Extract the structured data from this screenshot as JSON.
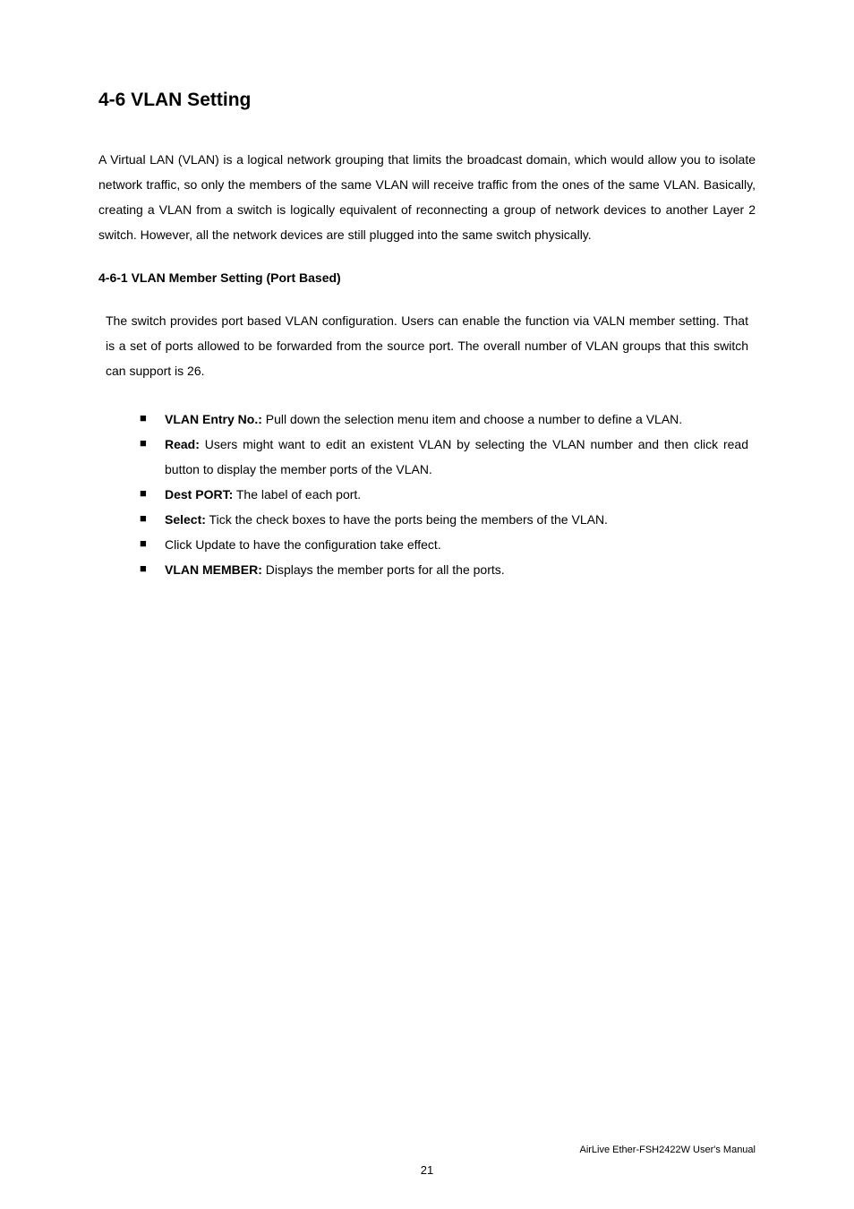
{
  "page": {
    "heading1": "4-6 VLAN Setting",
    "intro_para": "A Virtual LAN (VLAN) is a logical network grouping that limits the broadcast domain, which would allow you to isolate network traffic, so only the members of the same VLAN will receive traffic from the ones of the same VLAN. Basically, creating a VLAN from a switch is logically equivalent of reconnecting a group of network devices to another Layer 2 switch. However, all the network devices are still plugged into the same switch physically.",
    "heading2": "4-6-1 VLAN Member Setting (Port Based)",
    "desc_para": "The switch provides port based VLAN configuration. Users can enable the function via VALN member setting. That is a set of ports allowed to be forwarded from the source port. The overall number of VLAN groups that this switch can support is 26.",
    "bullets": [
      {
        "bold": "VLAN Entry No.:",
        "rest": " Pull down the selection menu item and choose a number to define a VLAN."
      },
      {
        "bold": "Read:",
        "rest": " Users might want to edit an existent VLAN by selecting the VLAN number and then click read button to display the member ports of the VLAN."
      },
      {
        "bold": "Dest PORT:",
        "rest": " The label of each port."
      },
      {
        "bold": "Select:",
        "rest": " Tick the check boxes to have the ports being the members of the VLAN."
      },
      {
        "bold": "",
        "rest": "Click Update to have the configuration take effect."
      },
      {
        "bold": "VLAN MEMBER:",
        "rest": " Displays the member ports for all the ports."
      }
    ],
    "footer_right": "AirLive Ether-FSH2422W User's Manual",
    "footer_center": "21"
  }
}
